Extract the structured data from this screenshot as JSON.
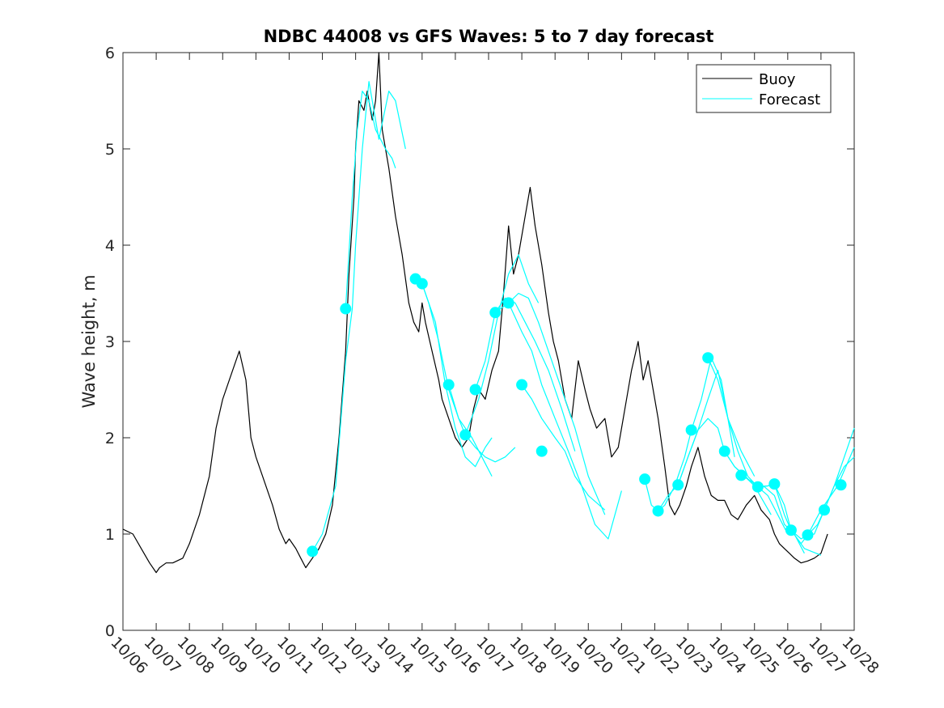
{
  "colors": {
    "buoy": "#000000",
    "forecast": "#00FFFF",
    "axis": "#262626"
  },
  "chart_data": {
    "type": "line",
    "title": "NDBC 44008 vs GFS Waves: 5 to 7 day forecast",
    "xlabel": "",
    "ylabel": "Wave height, m",
    "xlim": [
      0,
      22
    ],
    "ylim": [
      0,
      6
    ],
    "x_unit": "days since 10/06",
    "categories": [
      "10/06",
      "10/07",
      "10/08",
      "10/09",
      "10/10",
      "10/11",
      "10/12",
      "10/13",
      "10/14",
      "10/15",
      "10/16",
      "10/17",
      "10/18",
      "10/19",
      "10/20",
      "10/21",
      "10/22",
      "10/23",
      "10/24",
      "10/25",
      "10/26",
      "10/27",
      "10/28"
    ],
    "yticks": [
      "0",
      "1",
      "2",
      "3",
      "4",
      "5",
      "6"
    ],
    "legend": {
      "position": "top-right",
      "entries": [
        {
          "name": "Buoy",
          "key": "buoy"
        },
        {
          "name": "Forecast",
          "key": "forecast"
        }
      ]
    },
    "series": [
      {
        "name": "Buoy",
        "x": [
          0,
          0.3,
          0.55,
          0.8,
          1.0,
          1.1,
          1.3,
          1.5,
          1.8,
          2.0,
          2.3,
          2.6,
          2.8,
          3.0,
          3.2,
          3.5,
          3.7,
          3.85,
          4.0,
          4.2,
          4.5,
          4.7,
          4.9,
          5.0,
          5.2,
          5.35,
          5.5,
          5.7,
          5.9,
          6.1,
          6.3,
          6.5,
          6.7,
          6.8,
          6.95,
          7.0,
          7.1,
          7.25,
          7.35,
          7.5,
          7.6,
          7.7,
          7.8,
          7.9,
          8.0,
          8.2,
          8.4,
          8.6,
          8.75,
          8.9,
          9.0,
          9.1,
          9.3,
          9.5,
          9.6,
          9.8,
          10.0,
          10.2,
          10.4,
          10.55,
          10.7,
          10.9,
          11.1,
          11.3,
          11.45,
          11.6,
          11.75,
          11.9,
          12.1,
          12.25,
          12.4,
          12.6,
          12.8,
          12.95,
          13.1,
          13.3,
          13.5,
          13.7,
          13.9,
          14.05,
          14.25,
          14.5,
          14.7,
          14.9,
          15.1,
          15.3,
          15.5,
          15.65,
          15.8,
          15.95,
          16.1,
          16.3,
          16.45,
          16.6,
          16.75,
          16.95,
          17.1,
          17.3,
          17.5,
          17.7,
          17.9,
          18.1,
          18.3,
          18.5,
          18.75,
          19.0,
          19.2,
          19.45,
          19.6,
          19.75,
          19.9,
          20.05,
          20.2,
          20.4,
          20.6,
          20.8,
          21.0,
          21.1,
          21.2
        ],
        "y": [
          1.05,
          1.0,
          0.85,
          0.7,
          0.6,
          0.65,
          0.7,
          0.7,
          0.75,
          0.9,
          1.2,
          1.6,
          2.1,
          2.4,
          2.6,
          2.9,
          2.6,
          2.0,
          1.8,
          1.6,
          1.3,
          1.05,
          0.9,
          0.95,
          0.85,
          0.75,
          0.65,
          0.75,
          0.85,
          1.0,
          1.3,
          2.0,
          2.9,
          3.7,
          4.5,
          5.0,
          5.5,
          5.4,
          5.6,
          5.3,
          5.5,
          6.0,
          5.2,
          5.0,
          4.8,
          4.3,
          3.9,
          3.4,
          3.2,
          3.1,
          3.4,
          3.2,
          2.9,
          2.6,
          2.4,
          2.2,
          2.0,
          1.9,
          2.0,
          2.3,
          2.5,
          2.4,
          2.7,
          2.9,
          3.5,
          4.2,
          3.7,
          3.9,
          4.3,
          4.6,
          4.2,
          3.8,
          3.3,
          3.0,
          2.8,
          2.4,
          2.2,
          2.8,
          2.5,
          2.3,
          2.1,
          2.2,
          1.8,
          1.9,
          2.3,
          2.7,
          3.0,
          2.6,
          2.8,
          2.5,
          2.2,
          1.7,
          1.3,
          1.2,
          1.3,
          1.5,
          1.7,
          1.9,
          1.6,
          1.4,
          1.35,
          1.35,
          1.2,
          1.15,
          1.3,
          1.4,
          1.25,
          1.15,
          1.0,
          0.9,
          0.85,
          0.8,
          0.75,
          0.7,
          0.72,
          0.75,
          0.8,
          0.9,
          1.0
        ]
      },
      {
        "name": "Forecast",
        "x": [
          5.7,
          6.0,
          6.4,
          6.7,
          6.9,
          7.0,
          7.2,
          7.4,
          7.7,
          8.0,
          8.2,
          8.5
        ],
        "y": [
          0.82,
          1.0,
          1.5,
          2.8,
          3.34,
          4.0,
          5.0,
          5.7,
          5.1,
          5.6,
          5.5,
          5.0
        ]
      },
      {
        "name": "Forecast",
        "x": [
          6.7,
          6.9,
          7.05,
          7.2,
          7.4,
          7.6,
          7.9,
          8.1,
          8.2
        ],
        "y": [
          3.34,
          4.5,
          5.2,
          5.6,
          5.5,
          5.2,
          5.0,
          4.9,
          4.8
        ]
      },
      {
        "name": "Forecast",
        "x": [
          8.8,
          9.0,
          9.2,
          9.5,
          9.8,
          10.1,
          10.5,
          10.8,
          11.1
        ],
        "y": [
          3.65,
          3.6,
          3.4,
          3.0,
          2.5,
          2.2,
          2.0,
          1.8,
          1.6
        ]
      },
      {
        "name": "Forecast",
        "x": [
          9.0,
          9.4,
          9.7,
          10.0,
          10.3,
          10.6,
          10.9,
          11.1
        ],
        "y": [
          3.6,
          3.2,
          2.55,
          2.1,
          1.8,
          1.7,
          1.9,
          2.0
        ]
      },
      {
        "name": "Forecast",
        "x": [
          9.8,
          10.1,
          10.3,
          10.6,
          10.9,
          11.2,
          11.5,
          11.8
        ],
        "y": [
          2.55,
          2.2,
          2.03,
          1.9,
          1.8,
          1.75,
          1.8,
          1.9
        ]
      },
      {
        "name": "Forecast",
        "x": [
          10.3,
          10.7,
          11.0,
          11.3,
          11.6,
          11.9,
          12.2,
          12.5
        ],
        "y": [
          2.03,
          2.4,
          2.8,
          3.3,
          3.7,
          3.9,
          3.6,
          3.4
        ]
      },
      {
        "name": "Forecast",
        "x": [
          10.6,
          10.9,
          11.2,
          11.5,
          11.8,
          12.1,
          12.4,
          12.8,
          13.2,
          13.6
        ],
        "y": [
          2.5,
          2.8,
          3.3,
          3.45,
          3.4,
          3.2,
          3.0,
          2.7,
          2.3,
          1.86
        ]
      },
      {
        "name": "Forecast",
        "x": [
          11.2,
          11.6,
          11.9,
          12.2,
          12.5,
          12.8,
          13.2,
          13.6,
          14.0,
          14.5
        ],
        "y": [
          3.3,
          3.4,
          3.5,
          3.45,
          3.2,
          2.9,
          2.5,
          2.1,
          1.6,
          1.2
        ]
      },
      {
        "name": "Forecast",
        "x": [
          11.6,
          12.0,
          12.3,
          12.6,
          13.0,
          13.4,
          13.8,
          14.2,
          14.6,
          15.0
        ],
        "y": [
          3.4,
          3.1,
          2.9,
          2.55,
          2.2,
          1.86,
          1.5,
          1.1,
          0.95,
          1.45
        ]
      },
      {
        "name": "Forecast",
        "x": [
          12.0,
          12.3,
          12.6,
          13.0,
          13.3,
          13.6,
          14.0,
          14.5
        ],
        "y": [
          2.55,
          2.4,
          2.2,
          2.0,
          1.86,
          1.6,
          1.4,
          1.25
        ]
      },
      {
        "name": "Forecast",
        "x": [
          15.7,
          15.9,
          16.1,
          16.3,
          16.6,
          16.9,
          17.1,
          17.4,
          17.7,
          18.0,
          18.4
        ],
        "y": [
          1.57,
          1.3,
          1.24,
          1.3,
          1.5,
          1.8,
          2.08,
          2.4,
          2.83,
          2.6,
          1.8
        ]
      },
      {
        "name": "Forecast",
        "x": [
          16.1,
          16.4,
          16.7,
          17.0,
          17.3,
          17.6,
          17.9,
          18.2,
          18.6,
          19.0
        ],
        "y": [
          1.24,
          1.4,
          1.51,
          1.8,
          2.08,
          2.4,
          2.7,
          2.2,
          1.86,
          1.6
        ]
      },
      {
        "name": "Forecast",
        "x": [
          16.7,
          17.0,
          17.3,
          17.6,
          17.9,
          18.1,
          18.4,
          18.7,
          19.0,
          19.5
        ],
        "y": [
          1.51,
          1.8,
          2.08,
          2.2,
          2.1,
          1.86,
          1.7,
          1.6,
          1.5,
          1.2
        ]
      },
      {
        "name": "Forecast",
        "x": [
          17.6,
          17.9,
          18.2,
          18.5,
          18.8,
          19.1,
          19.4,
          19.7,
          20.0
        ],
        "y": [
          2.83,
          2.6,
          2.2,
          1.86,
          1.6,
          1.49,
          1.4,
          1.2,
          1.0
        ]
      },
      {
        "name": "Forecast",
        "x": [
          18.1,
          18.4,
          18.7,
          19.0,
          19.3,
          19.6,
          19.9,
          20.2,
          20.5
        ],
        "y": [
          1.86,
          1.7,
          1.61,
          1.5,
          1.49,
          1.4,
          1.1,
          1.0,
          0.8
        ]
      },
      {
        "name": "Forecast",
        "x": [
          18.6,
          18.9,
          19.1,
          19.4,
          19.6,
          19.9,
          20.1,
          20.5,
          21.0
        ],
        "y": [
          1.61,
          1.55,
          1.49,
          1.5,
          1.52,
          1.3,
          1.04,
          0.85,
          0.78
        ]
      },
      {
        "name": "Forecast",
        "x": [
          19.1,
          19.4,
          19.6,
          19.9,
          20.1,
          20.4,
          20.6,
          21.0,
          21.5,
          22.0
        ],
        "y": [
          1.49,
          1.5,
          1.52,
          1.2,
          1.04,
          0.9,
          0.99,
          1.25,
          1.5,
          1.9
        ]
      },
      {
        "name": "Forecast",
        "x": [
          20.1,
          20.4,
          20.6,
          20.9,
          21.1,
          21.4,
          21.7,
          22.0
        ],
        "y": [
          1.04,
          0.95,
          0.99,
          1.1,
          1.25,
          1.5,
          1.8,
          2.1
        ]
      },
      {
        "name": "Forecast",
        "x": [
          20.6,
          20.8,
          21.1,
          21.4,
          21.7,
          22.0
        ],
        "y": [
          0.99,
          1.0,
          1.25,
          1.5,
          1.7,
          1.8
        ]
      }
    ],
    "markers": {
      "name": "Forecast start",
      "x": [
        5.7,
        6.7,
        8.8,
        9.0,
        9.8,
        10.3,
        10.6,
        11.2,
        11.6,
        12.0,
        12.6,
        15.7,
        16.1,
        16.7,
        17.1,
        17.6,
        18.1,
        18.6,
        19.1,
        19.6,
        20.1,
        20.6,
        21.1,
        21.6
      ],
      "y": [
        0.82,
        3.34,
        3.65,
        3.6,
        2.55,
        2.03,
        2.5,
        3.3,
        3.4,
        2.55,
        1.86,
        1.57,
        1.24,
        1.51,
        2.08,
        2.83,
        1.86,
        1.61,
        1.49,
        1.52,
        1.04,
        0.99,
        1.25,
        1.51
      ]
    }
  }
}
